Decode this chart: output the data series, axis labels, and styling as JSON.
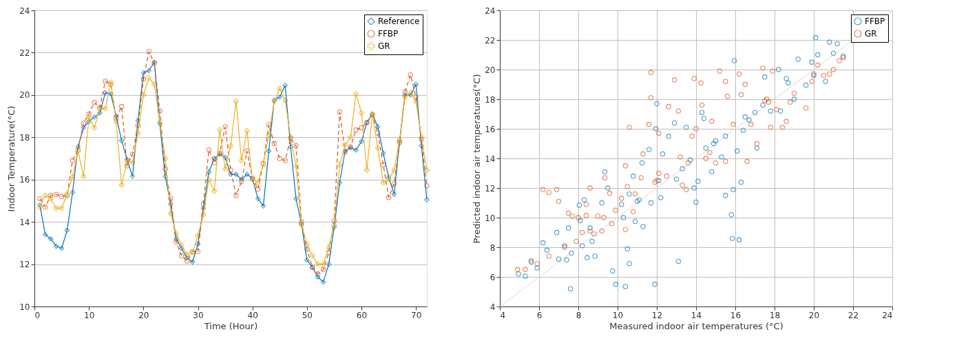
{
  "chart_data": [
    {
      "type": "line",
      "xlabel": "Time (Hour)",
      "ylabel": "Indoor Temperature(°C)",
      "xlim": [
        0,
        72
      ],
      "ylim": [
        10,
        24
      ],
      "xticks": [
        0,
        10,
        20,
        30,
        40,
        50,
        60,
        70
      ],
      "yticks": [
        10,
        12,
        14,
        16,
        18,
        20,
        22,
        24
      ],
      "grid": "y",
      "legend": "top right",
      "x": [
        1,
        2,
        3,
        4,
        5,
        6,
        7,
        8,
        9,
        10,
        11,
        12,
        13,
        14,
        15,
        16,
        17,
        18,
        19,
        20,
        21,
        22,
        23,
        24,
        25,
        26,
        27,
        28,
        29,
        30,
        31,
        32,
        33,
        34,
        35,
        36,
        37,
        38,
        39,
        40,
        41,
        42,
        43,
        44,
        45,
        46,
        47,
        48,
        49,
        50,
        51,
        52,
        53,
        54,
        55,
        56,
        57,
        58,
        59,
        60,
        61,
        62,
        63,
        64,
        65,
        66,
        67,
        68,
        69,
        70,
        71,
        72
      ],
      "series": [
        {
          "name": "Reference",
          "color": "#0072bd",
          "marker": "diamond",
          "line_style": "solid",
          "values": [
            14.8,
            13.4,
            13.2,
            12.85,
            12.75,
            13.6,
            15.4,
            17.55,
            18.45,
            18.75,
            18.95,
            19.15,
            20.1,
            20.05,
            19.0,
            17.85,
            16.95,
            16.15,
            18.8,
            21.05,
            21.15,
            21.55,
            18.65,
            16.15,
            14.85,
            13.2,
            12.75,
            12.3,
            12.1,
            12.95,
            14.65,
            16.35,
            17.0,
            17.2,
            17.05,
            16.25,
            16.25,
            16.0,
            16.25,
            16.05,
            15.1,
            14.75,
            17.35,
            19.75,
            19.9,
            20.45,
            17.55,
            15.1,
            13.9,
            12.2,
            11.85,
            11.4,
            11.15,
            12.0,
            13.75,
            15.85,
            17.35,
            17.5,
            17.4,
            17.8,
            18.7,
            19.1,
            18.5,
            17.25,
            16.1,
            15.3,
            17.8,
            20.0,
            20.0,
            20.5,
            17.6,
            15.05
          ]
        },
        {
          "name": "FFBP",
          "color": "#d95319",
          "marker": "circle",
          "line_style": "dashed",
          "values": [
            15.1,
            14.7,
            15.25,
            15.3,
            15.2,
            15.25,
            16.9,
            17.4,
            18.65,
            19.1,
            19.65,
            19.4,
            20.65,
            20.5,
            18.9,
            19.45,
            16.65,
            17.2,
            18.55,
            20.75,
            22.05,
            21.5,
            19.25,
            16.5,
            15.1,
            13.05,
            12.4,
            12.15,
            12.6,
            12.6,
            14.85,
            17.4,
            16.8,
            17.25,
            18.5,
            16.45,
            15.25,
            15.9,
            17.35,
            16.05,
            15.55,
            16.75,
            18.6,
            17.7,
            17.0,
            16.9,
            17.95,
            17.6,
            14.0,
            12.7,
            11.85,
            11.55,
            11.75,
            12.55,
            14.05,
            19.2,
            17.3,
            17.55,
            18.35,
            18.45,
            18.7,
            19.05,
            18.2,
            16.7,
            15.15,
            15.8,
            17.75,
            20.15,
            20.95,
            19.9,
            17.9,
            15.7
          ]
        },
        {
          "name": "GR",
          "color": "#edb120",
          "marker": "cross",
          "line_style": "solid",
          "values": [
            14.7,
            15.25,
            15.1,
            14.65,
            14.65,
            15.3,
            16.15,
            17.35,
            16.15,
            18.95,
            18.45,
            19.35,
            19.35,
            20.6,
            18.75,
            15.75,
            16.9,
            16.8,
            18.2,
            20.0,
            20.8,
            20.5,
            18.75,
            17.0,
            14.4,
            13.45,
            12.9,
            12.45,
            12.55,
            13.35,
            14.35,
            16.0,
            15.45,
            18.35,
            16.5,
            17.6,
            19.7,
            16.9,
            18.3,
            16.0,
            15.85,
            16.75,
            18.1,
            19.7,
            20.3,
            19.75,
            18.0,
            16.65,
            13.85,
            12.95,
            12.4,
            12.0,
            12.0,
            12.8,
            13.85,
            16.7,
            17.65,
            18.0,
            20.05,
            19.15,
            16.45,
            19.1,
            17.5,
            15.85,
            16.0,
            16.45,
            17.9,
            19.9,
            20.1,
            19.7,
            18.0,
            16.45
          ]
        }
      ]
    },
    {
      "type": "scatter",
      "xlabel": "Measured indoor air temperatures (°C)",
      "ylabel": "Predicted indoor air temperatures(°C)",
      "xlim": [
        4,
        24
      ],
      "ylim": [
        4,
        24
      ],
      "xticks": [
        4,
        6,
        8,
        10,
        12,
        14,
        16,
        18,
        20,
        22,
        24
      ],
      "yticks": [
        4,
        6,
        8,
        10,
        12,
        14,
        16,
        18,
        20,
        22,
        24
      ],
      "grid": true,
      "legend": "top right",
      "marker": "circle",
      "series": [
        {
          "type": "line",
          "color": "#d9d9d9",
          "marker": "none",
          "x": [
            4,
            24
          ],
          "values": [
            4,
            24
          ]
        },
        {
          "name": "FFBP",
          "color": "#0072bd",
          "x": [
            4.95,
            5.3,
            5.6,
            5.9,
            6.2,
            6.4,
            6.9,
            7.0,
            7.3,
            7.4,
            7.5,
            7.6,
            7.65,
            8.05,
            8.1,
            8.2,
            8.3,
            8.45,
            8.6,
            8.7,
            8.85,
            9.2,
            9.35,
            9.5,
            9.75,
            9.9,
            10.2,
            10.3,
            10.4,
            10.5,
            10.6,
            10.6,
            10.8,
            10.9,
            11.1,
            11.3,
            11.25,
            11.6,
            11.7,
            11.9,
            11.95,
            12.0,
            12.2,
            12.3,
            12.6,
            12.9,
            13.0,
            13.1,
            13.3,
            13.5,
            13.9,
            14.0,
            14.1,
            14.3,
            14.4,
            14.5,
            14.8,
            15.0,
            15.3,
            15.5,
            15.8,
            15.85,
            15.9,
            15.95,
            16.1,
            16.2,
            16.3,
            16.4,
            16.5,
            17.0,
            17.1,
            17.4,
            17.5,
            17.8,
            18.2,
            18.3,
            18.6,
            19.0,
            19.2,
            19.6,
            19.9,
            20.1,
            20.2,
            20.6,
            20.8,
            21.0,
            21.2,
            21.5,
            20.0,
            12.1,
            13.7,
            14.9,
            16.7,
            18.7,
            11.0,
            15.5
          ],
          "values": [
            6.2,
            6.05,
            7.0,
            6.6,
            8.3,
            7.8,
            9.0,
            7.2,
            8.1,
            7.15,
            9.3,
            5.2,
            7.6,
            10.85,
            9.8,
            8.1,
            11.2,
            7.3,
            9.3,
            8.4,
            7.4,
            11.0,
            13.1,
            12.0,
            6.4,
            5.5,
            10.9,
            10.0,
            5.35,
            7.9,
            6.9,
            11.6,
            12.8,
            9.75,
            11.2,
            9.4,
            13.7,
            14.6,
            11.0,
            5.5,
            16.0,
            17.7,
            11.35,
            14.3,
            15.5,
            16.4,
            12.6,
            7.05,
            13.3,
            16.1,
            12.0,
            11.05,
            12.45,
            17.1,
            16.7,
            14.7,
            13.1,
            15.2,
            14.1,
            11.5,
            10.2,
            8.6,
            11.9,
            20.6,
            14.5,
            8.5,
            12.4,
            15.9,
            16.8,
            17.1,
            14.7,
            17.6,
            19.5,
            17.2,
            20.0,
            17.2,
            19.4,
            18.0,
            20.7,
            18.95,
            20.5,
            22.15,
            21.0,
            19.2,
            21.85,
            21.1,
            21.75,
            20.9,
            19.6,
            12.5,
            13.9,
            15.0,
            16.6,
            19.1,
            11.1,
            15.5
          ]
        },
        {
          "name": "GR",
          "color": "#d95319",
          "x": [
            4.9,
            5.3,
            5.6,
            5.9,
            6.2,
            6.5,
            6.5,
            6.9,
            7.0,
            7.3,
            7.5,
            7.7,
            7.9,
            8.0,
            8.2,
            8.4,
            8.4,
            8.6,
            8.6,
            8.8,
            9.0,
            9.2,
            9.3,
            9.35,
            9.6,
            9.7,
            9.9,
            10.2,
            10.4,
            10.4,
            10.5,
            10.6,
            10.8,
            10.9,
            11.2,
            11.3,
            11.6,
            11.7,
            11.7,
            11.9,
            12.1,
            12.1,
            12.5,
            12.6,
            12.9,
            13.1,
            13.2,
            13.3,
            13.5,
            13.8,
            13.9,
            14.0,
            14.25,
            14.3,
            14.5,
            14.8,
            15.0,
            15.2,
            15.5,
            15.5,
            15.6,
            15.9,
            16.2,
            16.3,
            16.5,
            16.6,
            16.8,
            17.1,
            17.4,
            17.5,
            17.7,
            17.8,
            17.9,
            18.1,
            18.4,
            18.6,
            18.8,
            19.0,
            19.6,
            19.9,
            20.0,
            20.2,
            20.5,
            20.8,
            21.0,
            21.3,
            21.5,
            12.0,
            13.6,
            14.7,
            17.6
          ],
          "values": [
            6.5,
            6.5,
            7.1,
            6.9,
            11.9,
            11.7,
            7.4,
            11.9,
            11.1,
            8.0,
            10.3,
            10.1,
            8.4,
            10.0,
            9.0,
            10.9,
            10.15,
            12.0,
            9.1,
            8.9,
            10.1,
            9.1,
            10.0,
            12.7,
            11.65,
            9.6,
            10.5,
            11.3,
            9.2,
            13.5,
            12.1,
            16.1,
            10.4,
            11.6,
            12.7,
            14.3,
            16.3,
            18.1,
            19.8,
            12.4,
            13.0,
            15.7,
            12.8,
            17.5,
            19.3,
            17.2,
            14.1,
            12.2,
            11.9,
            15.5,
            19.4,
            16.0,
            19.1,
            17.6,
            14.0,
            16.5,
            13.7,
            19.9,
            13.8,
            19.2,
            18.2,
            16.3,
            19.7,
            18.3,
            19.0,
            13.8,
            16.3,
            15.0,
            20.1,
            17.9,
            17.8,
            16.1,
            19.9,
            17.3,
            16.1,
            16.5,
            17.8,
            18.4,
            17.4,
            19.2,
            19.7,
            20.3,
            19.6,
            19.7,
            20.0,
            20.6,
            20.8,
            12.5,
            13.7,
            14.4,
            18.0
          ]
        }
      ]
    }
  ]
}
